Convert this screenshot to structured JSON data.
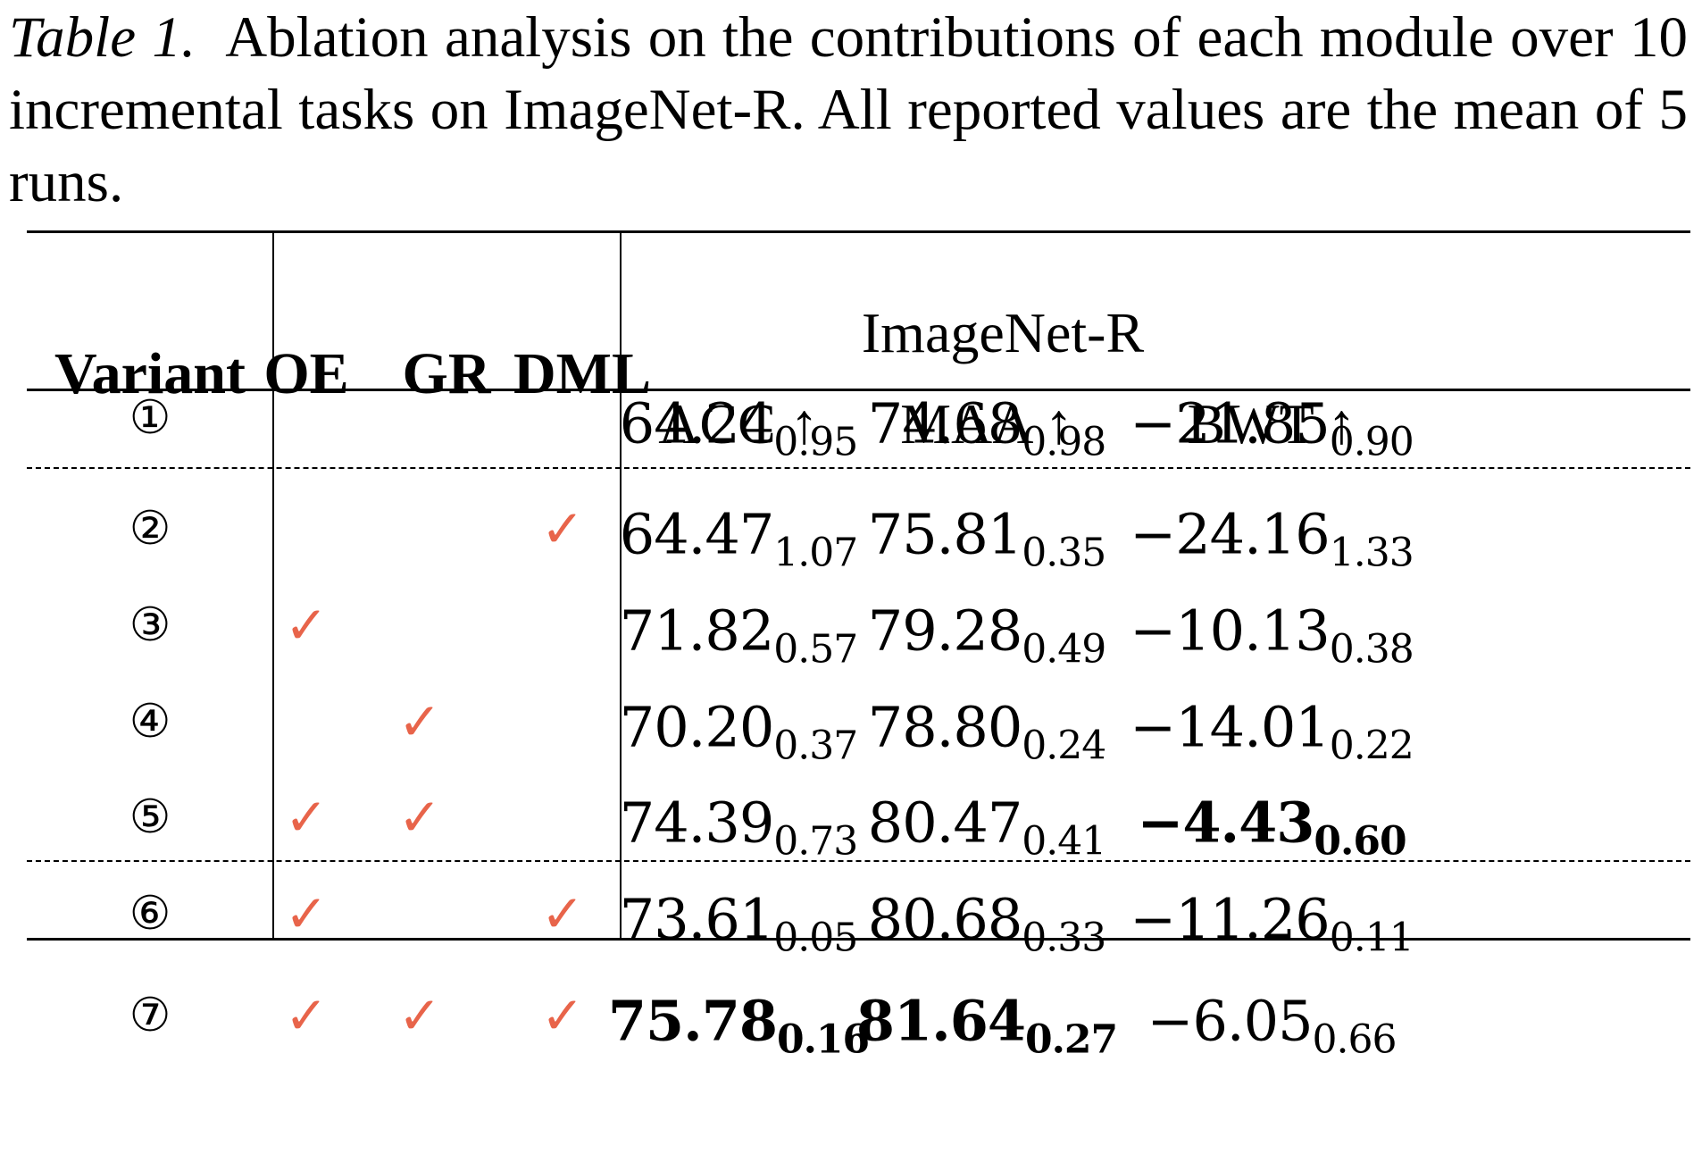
{
  "caption": {
    "label": "Table 1.",
    "text": "Ablation analysis on the contributions of each module over 10 incremental tasks on ImageNet-R. All reported values are the mean of 5 runs."
  },
  "colors": {
    "check": "#e8644a",
    "text": "#000000"
  },
  "table": {
    "headers": {
      "variant": "Variant",
      "modules": [
        "OE",
        "GR",
        "DML"
      ],
      "dataset": "ImageNet-R",
      "metrics": [
        "ACC ↑",
        "MAA ↑",
        "BWT ↑"
      ]
    },
    "check_symbol": "✓",
    "check_icon": "check-mark-icon",
    "rows": [
      {
        "variant": "①",
        "modules": [
          false,
          false,
          false
        ],
        "metrics": [
          {
            "value": "64.24",
            "std": "0.95",
            "best": false
          },
          {
            "value": "74.68",
            "std": "0.98",
            "best": false
          },
          {
            "value": "−21.85",
            "std": "0.90",
            "best": false
          }
        ]
      },
      {
        "variant": "②",
        "modules": [
          false,
          false,
          true
        ],
        "metrics": [
          {
            "value": "64.47",
            "std": "1.07",
            "best": false
          },
          {
            "value": "75.81",
            "std": "0.35",
            "best": false
          },
          {
            "value": "−24.16",
            "std": "1.33",
            "best": false
          }
        ]
      },
      {
        "variant": "③",
        "modules": [
          true,
          false,
          false
        ],
        "metrics": [
          {
            "value": "71.82",
            "std": "0.57",
            "best": false
          },
          {
            "value": "79.28",
            "std": "0.49",
            "best": false
          },
          {
            "value": "−10.13",
            "std": "0.38",
            "best": false
          }
        ]
      },
      {
        "variant": "④",
        "modules": [
          false,
          true,
          false
        ],
        "metrics": [
          {
            "value": "70.20",
            "std": "0.37",
            "best": false
          },
          {
            "value": "78.80",
            "std": "0.24",
            "best": false
          },
          {
            "value": "−14.01",
            "std": "0.22",
            "best": false
          }
        ]
      },
      {
        "variant": "⑤",
        "modules": [
          true,
          true,
          false
        ],
        "metrics": [
          {
            "value": "74.39",
            "std": "0.73",
            "best": false
          },
          {
            "value": "80.47",
            "std": "0.41",
            "best": false
          },
          {
            "value": "−4.43",
            "std": "0.60",
            "best": true
          }
        ]
      },
      {
        "variant": "⑥",
        "modules": [
          true,
          false,
          true
        ],
        "metrics": [
          {
            "value": "73.61",
            "std": "0.05",
            "best": false
          },
          {
            "value": "80.68",
            "std": "0.33",
            "best": false
          },
          {
            "value": "−11.26",
            "std": "0.11",
            "best": false
          }
        ]
      },
      {
        "variant": "⑦",
        "modules": [
          true,
          true,
          true
        ],
        "metrics": [
          {
            "value": "75.78",
            "std": "0.16",
            "best": true
          },
          {
            "value": "81.64",
            "std": "0.27",
            "best": true
          },
          {
            "value": "−6.05",
            "std": "0.66",
            "best": false
          }
        ]
      }
    ]
  }
}
